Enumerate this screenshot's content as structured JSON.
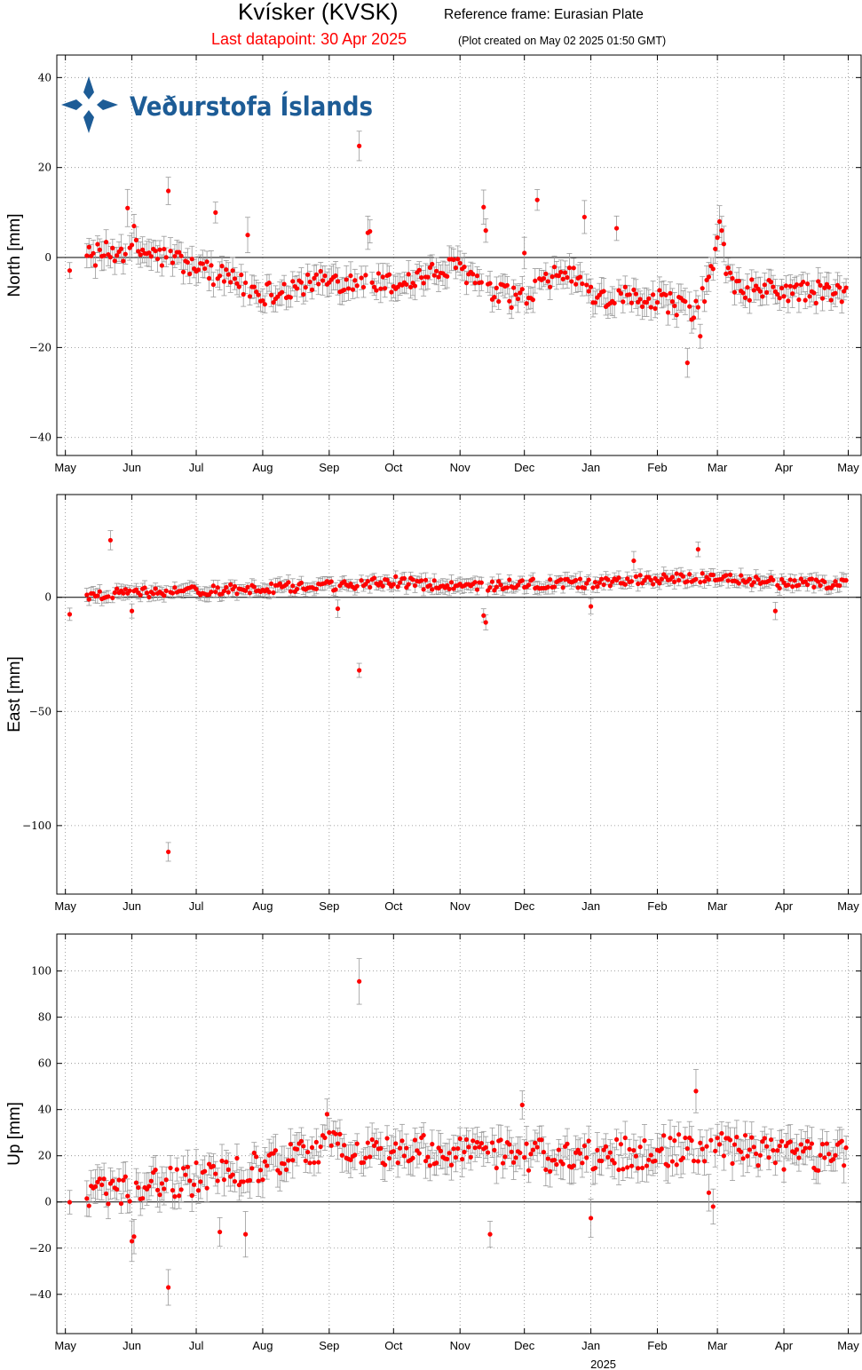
{
  "header": {
    "title": "Kvísker (KVSK)",
    "reference_frame": "Reference frame: Eurasian Plate",
    "last_datapoint": "Last datapoint: 30 Apr 2025",
    "plot_created": "(Plot created on May 02 2025 01:50 GMT)"
  },
  "logo": {
    "text": "Veðurstofa Íslands",
    "color": "#1d5c96"
  },
  "colors": {
    "point": "#ff0000",
    "errorbar": "#999999",
    "zero_line": "#000000",
    "grid": "#888888"
  },
  "chart_data": [
    {
      "type": "scatter",
      "ylabel": "North [mm]",
      "ylim": [
        -44,
        45
      ],
      "yticks": [
        40,
        20,
        0,
        -20,
        -40
      ],
      "xlim": [
        "2024-04-27",
        "2025-05-07"
      ],
      "month_ticks": [
        "May",
        "Jun",
        "Jul",
        "Aug",
        "Sep",
        "Oct",
        "Nov",
        "Dec",
        "Jan",
        "Feb",
        "Mar",
        "Apr",
        "May"
      ],
      "year_label": "",
      "grid": true,
      "zero_line": true,
      "typical_error_mm": 2.5,
      "baseline_anchors": [
        [
          "2024-05-03",
          -0.5
        ],
        [
          "2024-06-01",
          2
        ],
        [
          "2024-07-01",
          -2
        ],
        [
          "2024-08-01",
          -8
        ],
        [
          "2024-09-01",
          -5
        ],
        [
          "2024-10-01",
          -6
        ],
        [
          "2024-11-01",
          -2
        ],
        [
          "2024-11-15",
          -8
        ],
        [
          "2024-12-01",
          -9
        ],
        [
          "2024-12-20",
          -3
        ],
        [
          "2025-01-05",
          -9
        ],
        [
          "2025-02-01",
          -9
        ],
        [
          "2025-02-20",
          -12
        ],
        [
          "2025-03-01",
          2
        ],
        [
          "2025-03-10",
          -7
        ],
        [
          "2025-04-30",
          -8
        ]
      ],
      "noise_amplitude": 2.5,
      "outliers": [
        [
          "2024-06-18",
          14.8
        ],
        [
          "2024-05-30",
          11
        ],
        [
          "2024-06-02",
          7
        ],
        [
          "2024-07-10",
          10
        ],
        [
          "2024-07-25",
          5
        ],
        [
          "2024-09-15",
          24.8
        ],
        [
          "2024-09-20",
          5.8
        ],
        [
          "2024-09-19",
          5.5
        ],
        [
          "2024-11-12",
          11.2
        ],
        [
          "2024-11-13",
          6
        ],
        [
          "2024-12-07",
          12.8
        ],
        [
          "2024-12-29",
          9
        ],
        [
          "2025-01-13",
          6.5
        ],
        [
          "2025-02-15",
          -23.4
        ],
        [
          "2025-02-21",
          -17.5
        ],
        [
          "2025-03-02",
          8
        ],
        [
          "2025-03-03",
          6
        ],
        [
          "2025-03-04",
          3
        ],
        [
          "2024-12-01",
          1
        ]
      ]
    },
    {
      "type": "scatter",
      "ylabel": "East [mm]",
      "ylim": [
        -130,
        45
      ],
      "yticks": [
        0,
        -50,
        -100
      ],
      "xlim": [
        "2024-04-27",
        "2025-05-07"
      ],
      "month_ticks": [
        "May",
        "Jun",
        "Jul",
        "Aug",
        "Sep",
        "Oct",
        "Nov",
        "Dec",
        "Jan",
        "Feb",
        "Mar",
        "Apr",
        "May"
      ],
      "year_label": "",
      "grid": true,
      "zero_line": true,
      "typical_error_mm": 2.5,
      "baseline_anchors": [
        [
          "2024-05-03",
          -7
        ],
        [
          "2024-05-10",
          1
        ],
        [
          "2024-06-01",
          2
        ],
        [
          "2024-07-01",
          3
        ],
        [
          "2024-08-01",
          4
        ],
        [
          "2024-09-01",
          5
        ],
        [
          "2024-10-01",
          7
        ],
        [
          "2024-11-01",
          4
        ],
        [
          "2024-12-01",
          6
        ],
        [
          "2025-01-01",
          6
        ],
        [
          "2025-02-01",
          8
        ],
        [
          "2025-03-01",
          9
        ],
        [
          "2025-04-01",
          6
        ],
        [
          "2025-04-30",
          6
        ]
      ],
      "noise_amplitude": 2.2,
      "outliers": [
        [
          "2024-05-22",
          25
        ],
        [
          "2024-06-18",
          -111.5
        ],
        [
          "2024-09-15",
          -32
        ],
        [
          "2024-09-05",
          -5
        ],
        [
          "2024-11-12",
          -8
        ],
        [
          "2024-11-13",
          -11
        ],
        [
          "2025-01-01",
          -4
        ],
        [
          "2025-02-20",
          21
        ],
        [
          "2025-03-28",
          -6
        ],
        [
          "2025-01-21",
          16
        ],
        [
          "2024-06-01",
          -6
        ]
      ]
    },
    {
      "type": "scatter",
      "ylabel": "Up [mm]",
      "ylim": [
        -57,
        116
      ],
      "yticks": [
        100,
        80,
        60,
        40,
        20,
        0,
        -20,
        -40
      ],
      "xlim": [
        "2024-04-27",
        "2025-05-07"
      ],
      "month_ticks": [
        "May",
        "Jun",
        "Jul",
        "Aug",
        "Sep",
        "Oct",
        "Nov",
        "Dec",
        "Jan",
        "Feb",
        "Mar",
        "Apr",
        "May"
      ],
      "year_label": "2025",
      "grid": true,
      "zero_line": true,
      "typical_error_mm": 6,
      "baseline_anchors": [
        [
          "2024-05-03",
          -4
        ],
        [
          "2024-05-15",
          5
        ],
        [
          "2024-06-01",
          6
        ],
        [
          "2024-07-01",
          10
        ],
        [
          "2024-08-01",
          15
        ],
        [
          "2024-09-01",
          25
        ],
        [
          "2024-10-01",
          22
        ],
        [
          "2024-11-01",
          22
        ],
        [
          "2024-12-01",
          20
        ],
        [
          "2025-01-01",
          20
        ],
        [
          "2025-02-01",
          22
        ],
        [
          "2025-03-01",
          24
        ],
        [
          "2025-04-01",
          20
        ],
        [
          "2025-04-30",
          20
        ]
      ],
      "noise_amplitude": 7,
      "outliers": [
        [
          "2024-06-18",
          -37
        ],
        [
          "2024-09-15",
          95.5
        ],
        [
          "2024-06-01",
          -17
        ],
        [
          "2024-06-02",
          -15
        ],
        [
          "2024-07-12",
          -13
        ],
        [
          "2024-07-24",
          -14
        ],
        [
          "2024-11-15",
          -14
        ],
        [
          "2025-01-01",
          -7
        ],
        [
          "2024-11-30",
          42
        ],
        [
          "2025-02-19",
          48
        ],
        [
          "2025-02-27",
          -2
        ],
        [
          "2025-02-25",
          4
        ],
        [
          "2024-08-31",
          38
        ]
      ]
    }
  ]
}
